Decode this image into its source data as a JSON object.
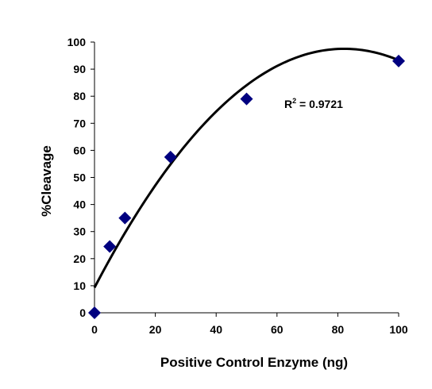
{
  "chart_data": {
    "type": "scatter",
    "title": "",
    "xlabel": "Positive Control Enzyme (ng)",
    "ylabel": "%Cleavage",
    "xlim": [
      0,
      100
    ],
    "ylim": [
      0,
      100
    ],
    "x_ticks": [
      "0",
      "20",
      "40",
      "60",
      "80",
      "100"
    ],
    "y_ticks": [
      "0",
      "10",
      "20",
      "30",
      "40",
      "50",
      "60",
      "70",
      "80",
      "90",
      "100"
    ],
    "grid": false,
    "legend": "none",
    "marker": "diamond",
    "marker_color": "#000080",
    "series": [
      {
        "x": [
          0,
          5,
          10,
          25,
          50,
          100
        ],
        "y": [
          0,
          24.5,
          35,
          57.5,
          79,
          93
        ]
      }
    ],
    "trendline": {
      "type": "polynomial",
      "order": 2,
      "coefficients": [
        9.3,
        2.15,
        -0.0131
      ],
      "color": "#000000"
    },
    "annotation": {
      "r_label": "R",
      "r_sup": "2",
      "r_value": " = 0.9721"
    }
  }
}
